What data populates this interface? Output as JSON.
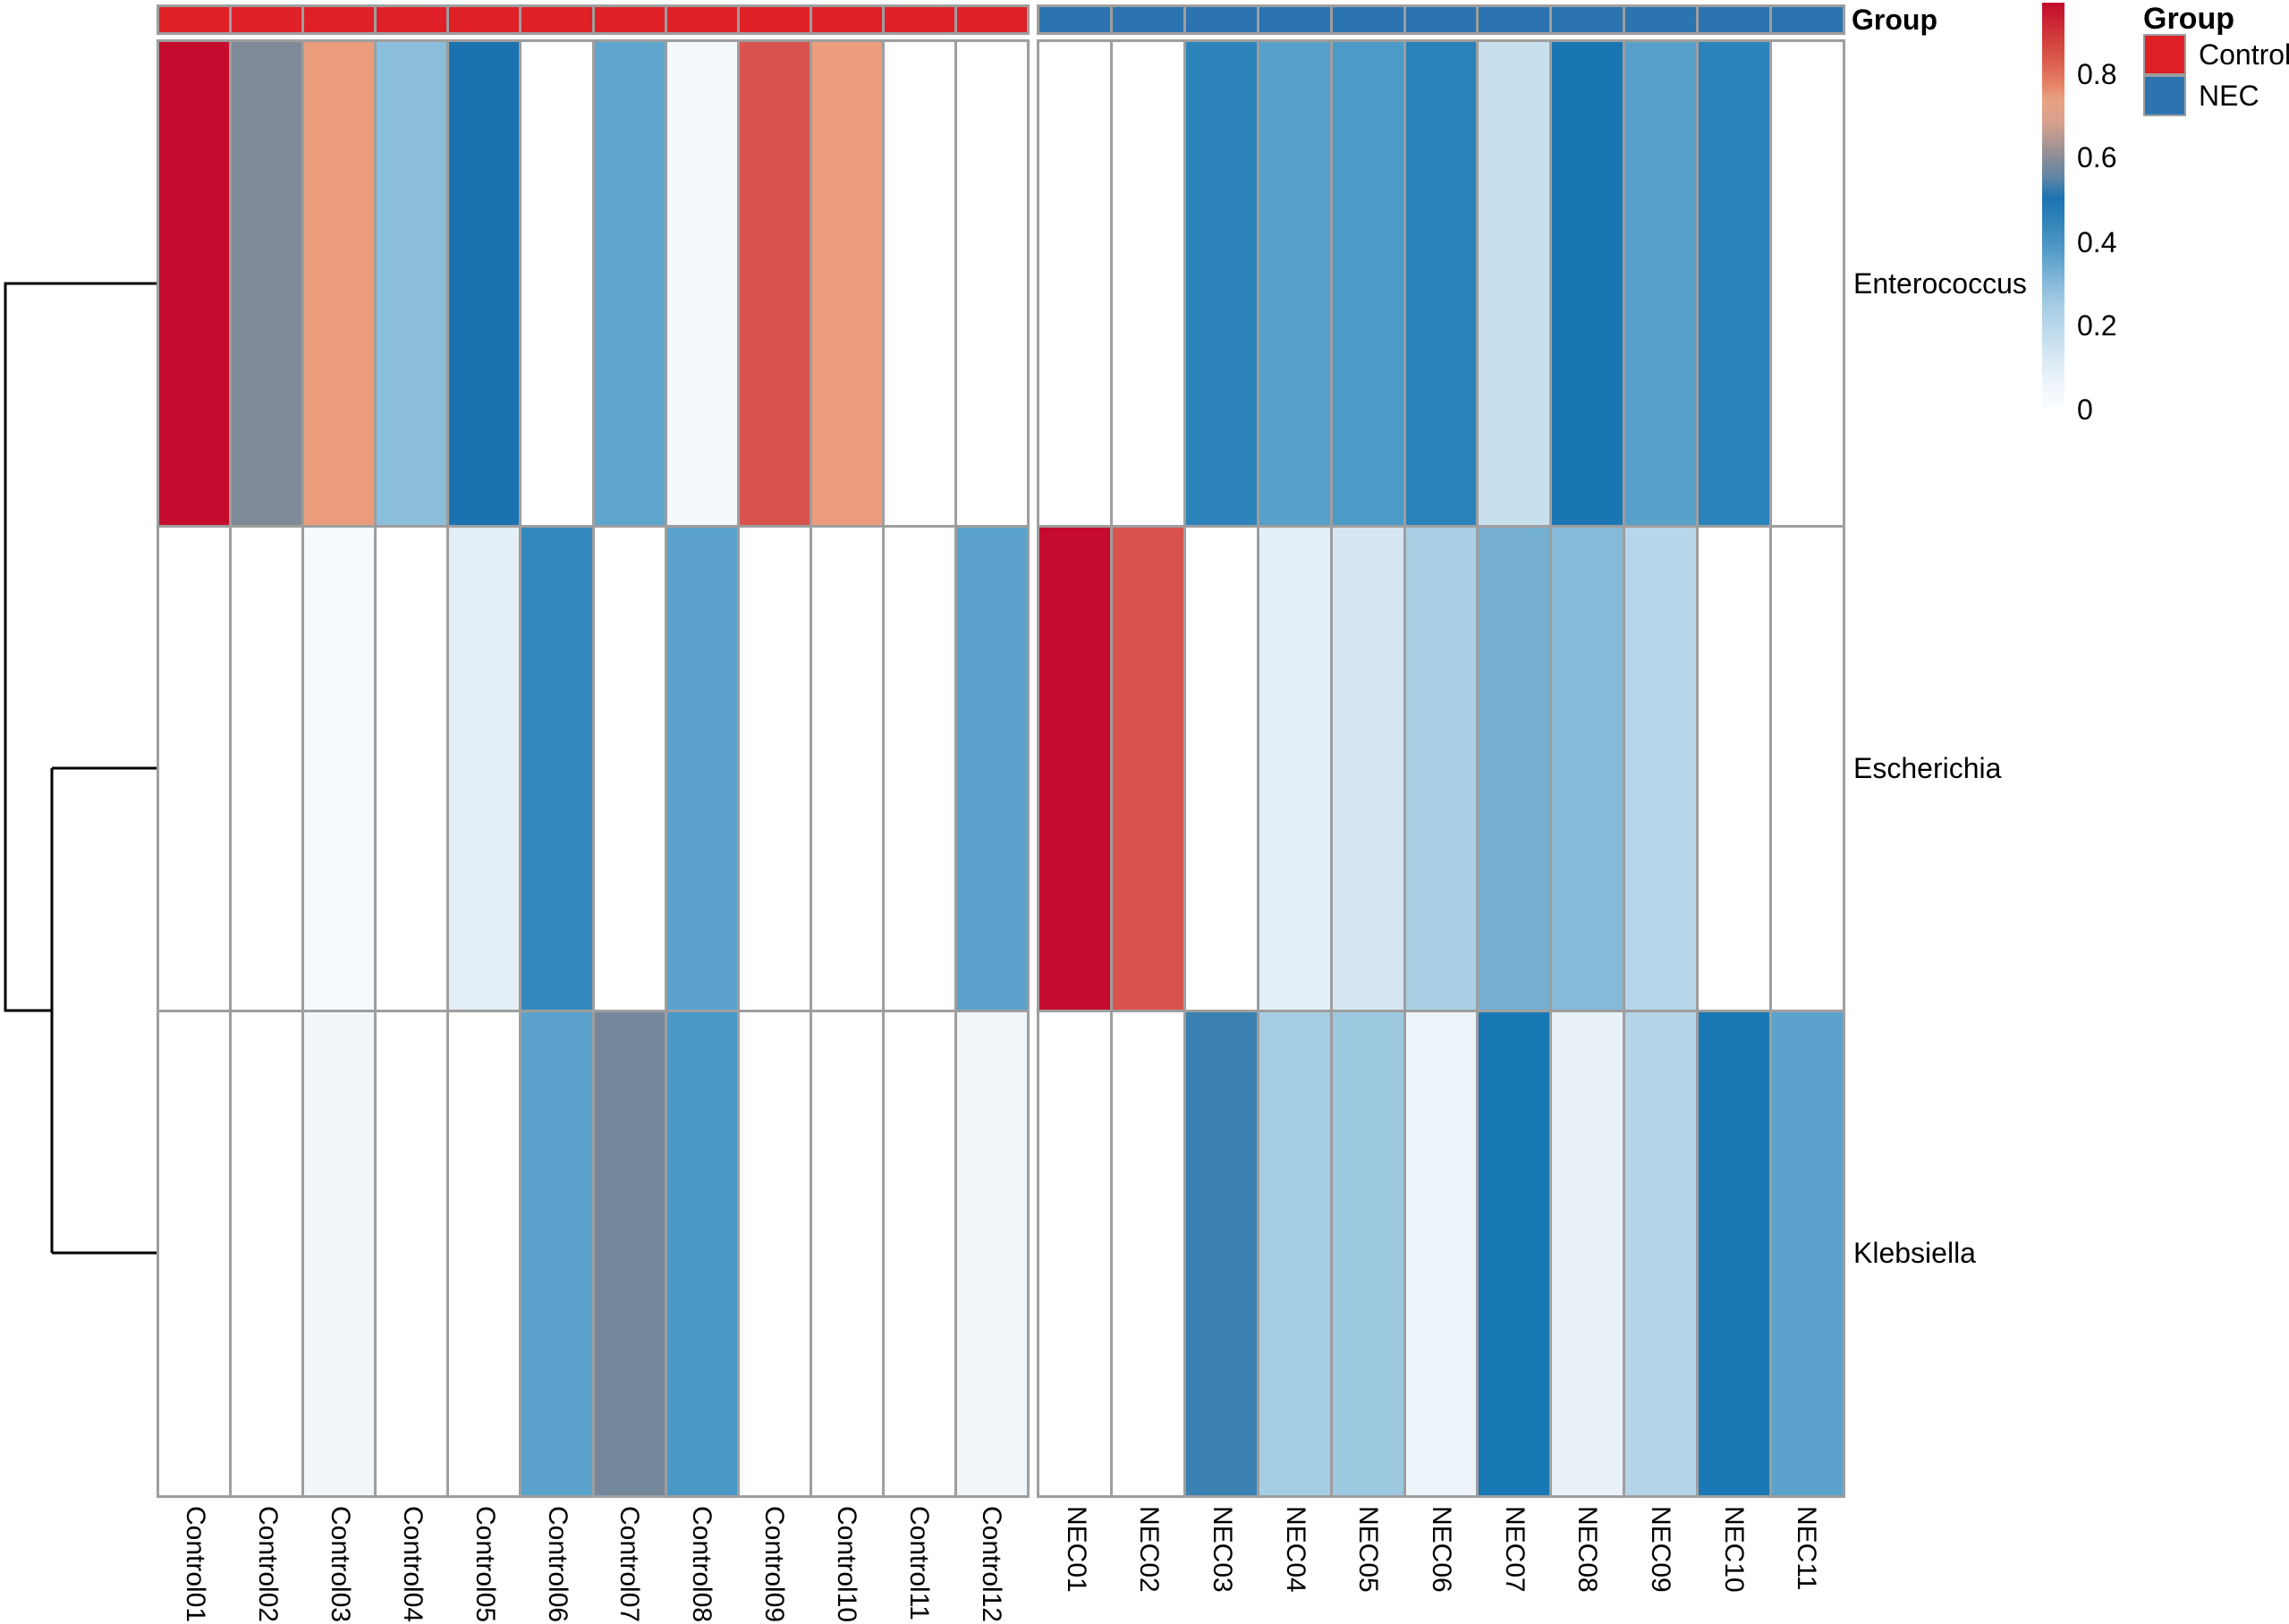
{
  "figure": {
    "kind": "clustered relative-abundance heatmap",
    "background": "#ffffff",
    "grid_line_color": "#9e9e9e"
  },
  "annotation": {
    "label": "Group",
    "groups": [
      {
        "name": "Control",
        "color": "#df2127",
        "n_samples": 12
      },
      {
        "name": "NEC",
        "color": "#2c74af",
        "n_samples": 11
      }
    ]
  },
  "legend": {
    "title": "Group",
    "entries": [
      {
        "label": "Control",
        "color": "#df2127"
      },
      {
        "label": "NEC",
        "color": "#2c74af"
      }
    ],
    "colorbar": {
      "ticks": [
        {
          "label": "0.8",
          "pct": 17.5
        },
        {
          "label": "0.6",
          "pct": 38.1
        },
        {
          "label": "0.4",
          "pct": 58.8
        },
        {
          "label": "0.2",
          "pct": 79.4
        },
        {
          "label": "0",
          "pct": 100
        }
      ],
      "gradient_stops": [
        [
          "0%",
          "#c20b2e"
        ],
        [
          "5%",
          "#cb2733"
        ],
        [
          "10%",
          "#d4443f"
        ],
        [
          "15%",
          "#dc604f"
        ],
        [
          "20%",
          "#e58266"
        ],
        [
          "24%",
          "#e9a183"
        ],
        [
          "29%",
          "#d8a18c"
        ],
        [
          "34%",
          "#b29793"
        ],
        [
          "38%",
          "#8a8d96"
        ],
        [
          "43%",
          "#5f85a5"
        ],
        [
          "48%",
          "#1c74b3"
        ],
        [
          "55%",
          "#3787bc"
        ],
        [
          "61%",
          "#549bc8"
        ],
        [
          "67%",
          "#7bb2d6"
        ],
        [
          "74%",
          "#a3cce4"
        ],
        [
          "80%",
          "#bbd9eb"
        ],
        [
          "87%",
          "#d6e8f3"
        ],
        [
          "93%",
          "#edf4fa"
        ],
        [
          "100%",
          "#fdfeff"
        ]
      ]
    }
  },
  "chart_data": {
    "type": "heatmap",
    "title": "",
    "xlabel": "",
    "ylabel": "",
    "value_range": [
      0,
      0.97
    ],
    "rows": [
      "Enterococcus",
      "Escherichia",
      "Klebsiella"
    ],
    "column_groups": {
      "Control": 12,
      "NEC": 11
    },
    "columns": [
      "Control01",
      "Control02",
      "Control03",
      "Control04",
      "Control05",
      "Control06",
      "Control07",
      "Control08",
      "Control09",
      "Control10",
      "Control11",
      "Control12",
      "NEC01",
      "NEC02",
      "NEC03",
      "NEC04",
      "NEC05",
      "NEC06",
      "NEC07",
      "NEC08",
      "NEC09",
      "NEC10",
      "NEC11"
    ],
    "row_dendrogram": "((Escherichia,Klebsiella),Enterococcus)",
    "series": [
      {
        "name": "Enterococcus",
        "values": [
          0.97,
          0.62,
          0.78,
          0.3,
          0.52,
          0,
          0.38,
          0.03,
          0.87,
          0.78,
          0,
          0,
          0,
          0,
          0.47,
          0.39,
          0.41,
          0.48,
          0.15,
          0.52,
          0.39,
          0.47,
          0
        ],
        "cell_colors": [
          "#c50c2e",
          "#7e8a97",
          "#ea9c7b",
          "#8bbedb",
          "#1b72b1",
          "#ffffff",
          "#5fa6ce",
          "#f5f9fc",
          "#d9534e",
          "#ec9d7b",
          "#ffffff",
          "#ffffff",
          "#ffffff",
          "#ffffff",
          "#2c84bb",
          "#57a0ca",
          "#4c9ac6",
          "#2a82ba",
          "#c8e0ee",
          "#1a75b3",
          "#57a0ca",
          "#2a84bb",
          "#ffffff"
        ]
      },
      {
        "name": "Escherichia",
        "values": [
          0,
          0,
          0.02,
          0,
          0.08,
          0.46,
          0,
          0.38,
          0,
          0,
          0,
          0.38,
          0.97,
          0.87,
          0,
          0.07,
          0.11,
          0.21,
          0.33,
          0.28,
          0.19,
          0,
          0
        ],
        "cell_colors": [
          "#ffffff",
          "#ffffff",
          "#f7fafd",
          "#ffffff",
          "#e4eef6",
          "#3389be",
          "#ffffff",
          "#5ba3cd",
          "#ffffff",
          "#ffffff",
          "#ffffff",
          "#5ba3cd",
          "#c50c2e",
          "#d9534e",
          "#ffffff",
          "#e4eef6",
          "#d5e6f2",
          "#a9d0e5",
          "#74afd2",
          "#85bad8",
          "#b7d6e9",
          "#ffffff",
          "#ffffff"
        ]
      },
      {
        "name": "Klebsiella",
        "values": [
          0,
          0,
          0.03,
          0,
          0,
          0.38,
          0.62,
          0.42,
          0,
          0,
          0,
          0.03,
          0,
          0,
          0.55,
          0.22,
          0.24,
          0.04,
          0.52,
          0.05,
          0.2,
          0.53,
          0.4
        ],
        "cell_colors": [
          "#ffffff",
          "#ffffff",
          "#f0f6fa",
          "#ffffff",
          "#ffffff",
          "#5ba3cd",
          "#74889b",
          "#4a99c6",
          "#ffffff",
          "#ffffff",
          "#ffffff",
          "#f0f6fa",
          "#ffffff",
          "#ffffff",
          "#3a80b0",
          "#a6cee3",
          "#9cc8e0",
          "#edf4f9",
          "#1878b4",
          "#e8f1f8",
          "#b4d4e8",
          "#1a79b5",
          "#5ba3cd"
        ]
      }
    ]
  }
}
